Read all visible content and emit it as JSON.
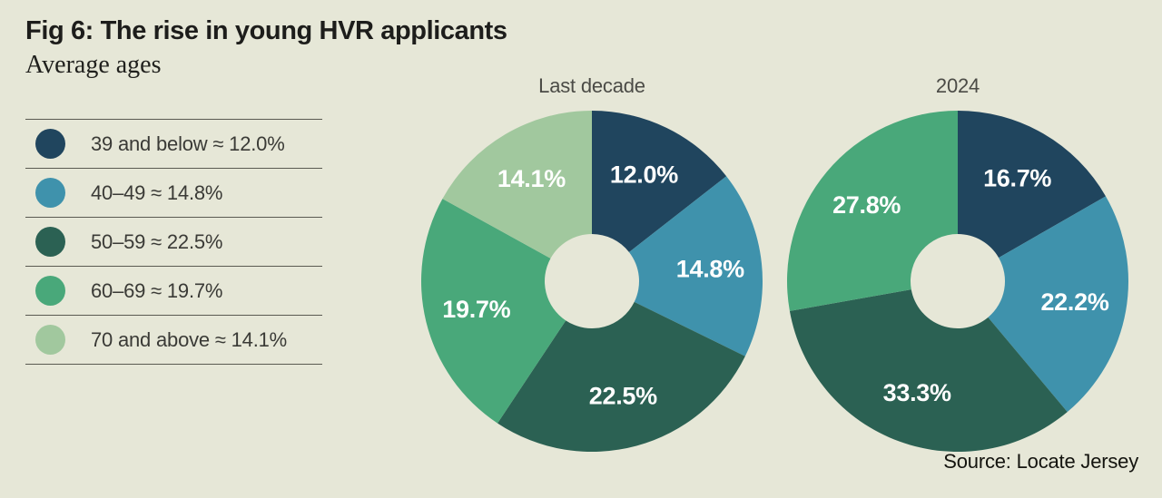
{
  "header": {
    "title": "Fig 6: The rise in young HVR applicants",
    "subtitle": "Average ages"
  },
  "legend": {
    "items": [
      {
        "label": "39 and below ≈ 12.0%",
        "color": "#20455e"
      },
      {
        "label": "40–49 ≈ 14.8%",
        "color": "#3f92ac"
      },
      {
        "label": "50–59 ≈ 22.5%",
        "color": "#2b6153"
      },
      {
        "label": "60–69 ≈ 19.7%",
        "color": "#49a87a"
      },
      {
        "label": "70 and above ≈ 14.1%",
        "color": "#a1c89e"
      }
    ]
  },
  "source": {
    "text": "Source: Locate Jersey"
  },
  "colors": {
    "background": "#e6e7d7",
    "age_39_below": "#20455e",
    "age_40_49": "#3f92ac",
    "age_50_59": "#2b6153",
    "age_60_69": "#49a87a",
    "age_70_above": "#a1c89e",
    "pie_label_text": "#ffffff",
    "separator_line": "#5a5a51"
  },
  "chart_data": [
    {
      "type": "pie",
      "shape": "donut",
      "title": "Last decade",
      "categories": [
        "39 and below",
        "40–49",
        "50–59",
        "60–69",
        "70 and above"
      ],
      "values": [
        12.0,
        14.8,
        22.5,
        19.7,
        14.1
      ],
      "labels": [
        "12.0%",
        "14.8%",
        "22.5%",
        "19.7%",
        "14.1%"
      ],
      "colors": [
        "#20455e",
        "#3f92ac",
        "#2b6153",
        "#49a87a",
        "#a1c89e"
      ],
      "start_angle_deg": 0,
      "direction": "clockwise",
      "legend_position": "left"
    },
    {
      "type": "pie",
      "shape": "donut",
      "title": "2024",
      "categories": [
        "39 and below",
        "40–49",
        "50–59",
        "60–69"
      ],
      "values": [
        16.7,
        22.2,
        33.3,
        27.8
      ],
      "labels": [
        "16.7%",
        "22.2%",
        "33.3%",
        "27.8%"
      ],
      "colors": [
        "#20455e",
        "#3f92ac",
        "#2b6153",
        "#49a87a"
      ],
      "start_angle_deg": 0,
      "direction": "clockwise",
      "legend_position": "left"
    }
  ]
}
